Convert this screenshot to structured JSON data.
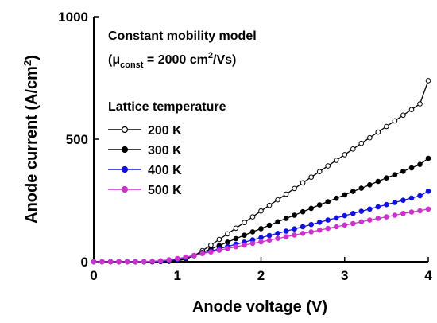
{
  "chart_data": {
    "type": "line",
    "xlabel": "Anode voltage (V)",
    "ylabel_main": "Anode current (A/cm",
    "ylabel_sup": "2",
    "ylabel_end": ")",
    "xlim": [
      0,
      4
    ],
    "ylim": [
      0,
      1000
    ],
    "x_ticks": [
      0,
      1,
      2,
      3,
      4
    ],
    "y_ticks": [
      0,
      500,
      1000
    ],
    "grid": false,
    "annotation": {
      "line1": "Constant mobility model",
      "line2_open": "(μ",
      "line2_sub": "const",
      "line2_mid": " = 2000 cm",
      "line2_sup": "2",
      "line2_end": "/Vs)"
    },
    "legend_title": "Lattice temperature",
    "legend_position": "upper-left",
    "series": [
      {
        "name": "200 K",
        "color": "#000000",
        "marker": "open-circle",
        "x": [
          0,
          0.1,
          0.2,
          0.3,
          0.4,
          0.5,
          0.6,
          0.7,
          0.8,
          0.9,
          1.0,
          1.1,
          1.2,
          1.3,
          1.4,
          1.5,
          1.6,
          1.7,
          1.8,
          1.9,
          2.0,
          2.1,
          2.2,
          2.3,
          2.4,
          2.5,
          2.6,
          2.7,
          2.8,
          2.9,
          3.0,
          3.1,
          3.2,
          3.3,
          3.4,
          3.5,
          3.6,
          3.7,
          3.8,
          3.9,
          4.0
        ],
        "y": [
          0,
          0,
          0,
          0,
          0,
          0,
          0,
          0,
          0.5,
          1.5,
          4,
          10,
          25,
          45,
          68,
          91,
          114,
          137,
          160,
          183,
          207,
          230,
          253,
          276,
          299,
          322,
          345,
          368,
          391,
          414,
          437,
          460,
          483,
          506,
          529,
          552,
          575,
          598,
          621,
          644,
          739
        ]
      },
      {
        "name": "300 K",
        "color": "#000000",
        "marker": "filled-circle",
        "x": [
          0,
          0.1,
          0.2,
          0.3,
          0.4,
          0.5,
          0.6,
          0.7,
          0.8,
          0.9,
          1.0,
          1.1,
          1.2,
          1.3,
          1.4,
          1.5,
          1.6,
          1.7,
          1.8,
          1.9,
          2.0,
          2.1,
          2.2,
          2.3,
          2.4,
          2.5,
          2.6,
          2.7,
          2.8,
          2.9,
          3.0,
          3.1,
          3.2,
          3.3,
          3.4,
          3.5,
          3.6,
          3.7,
          3.8,
          3.9,
          4.0
        ],
        "y": [
          0,
          0,
          0,
          0,
          0,
          0,
          0,
          0,
          1,
          3,
          7,
          14,
          25,
          38,
          52,
          66,
          80,
          94,
          108,
          122,
          135,
          149,
          163,
          177,
          190,
          204,
          218,
          232,
          245,
          259,
          273,
          287,
          300,
          314,
          328,
          342,
          355,
          369,
          383,
          397,
          422
        ]
      },
      {
        "name": "400 K",
        "color": "#1010e0",
        "marker": "filled-circle",
        "x": [
          0,
          0.1,
          0.2,
          0.3,
          0.4,
          0.5,
          0.6,
          0.7,
          0.8,
          0.9,
          1.0,
          1.1,
          1.2,
          1.3,
          1.4,
          1.5,
          1.6,
          1.7,
          1.8,
          1.9,
          2.0,
          2.1,
          2.2,
          2.3,
          2.4,
          2.5,
          2.6,
          2.7,
          2.8,
          2.9,
          3.0,
          3.1,
          3.2,
          3.3,
          3.4,
          3.5,
          3.6,
          3.7,
          3.8,
          3.9,
          4.0
        ],
        "y": [
          0,
          0,
          0,
          0,
          0,
          0,
          0,
          0.5,
          2,
          5,
          10,
          17,
          25,
          34,
          43,
          53,
          62,
          71,
          80,
          89,
          98,
          107,
          116,
          125,
          134,
          143,
          152,
          161,
          170,
          179,
          188,
          197,
          206,
          215,
          224,
          233,
          242,
          251,
          260,
          269,
          288
        ]
      },
      {
        "name": "500 K",
        "color": "#cc33cc",
        "marker": "filled-circle",
        "x": [
          0,
          0.1,
          0.2,
          0.3,
          0.4,
          0.5,
          0.6,
          0.7,
          0.8,
          0.9,
          1.0,
          1.1,
          1.2,
          1.3,
          1.4,
          1.5,
          1.6,
          1.7,
          1.8,
          1.9,
          2.0,
          2.1,
          2.2,
          2.3,
          2.4,
          2.5,
          2.6,
          2.7,
          2.8,
          2.9,
          3.0,
          3.1,
          3.2,
          3.3,
          3.4,
          3.5,
          3.6,
          3.7,
          3.8,
          3.9,
          4.0
        ],
        "y": [
          0,
          0,
          0,
          0,
          0,
          0,
          1,
          2,
          4,
          8,
          13,
          19,
          26,
          33,
          40,
          47,
          54,
          61,
          68,
          75,
          81,
          88,
          95,
          102,
          109,
          116,
          122,
          129,
          136,
          143,
          150,
          156,
          163,
          170,
          177,
          183,
          190,
          197,
          203,
          208,
          215
        ]
      }
    ]
  }
}
